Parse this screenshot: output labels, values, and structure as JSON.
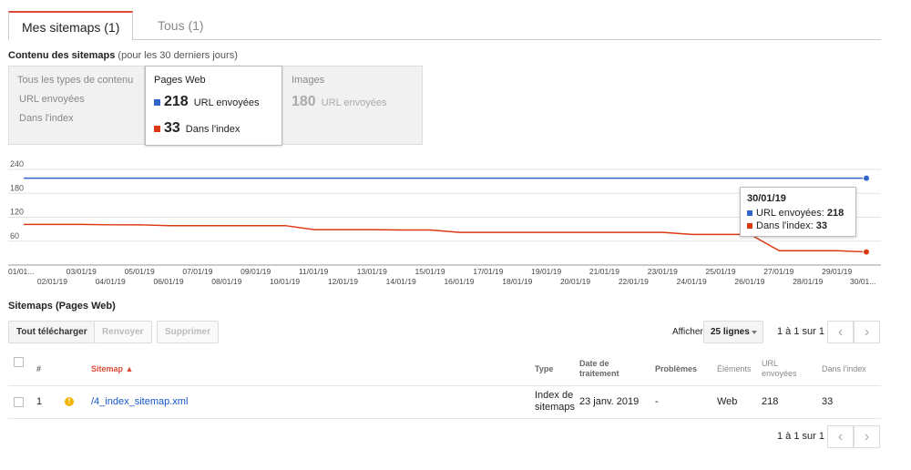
{
  "tabs": [
    {
      "label": "Mes sitemaps (1)",
      "active": true
    },
    {
      "label": "Tous (1)",
      "active": false
    }
  ],
  "content_section": {
    "title": "Contenu des sitemaps",
    "subtitle": "(pour les 30 derniers jours)"
  },
  "boxes": {
    "all": {
      "title": "Tous les types de contenu",
      "line1": "URL envoyées",
      "line2": "Dans l'index"
    },
    "web": {
      "title": "Pages Web",
      "submitted_value": "218",
      "submitted_label": "URL envoyées",
      "indexed_value": "33",
      "indexed_label": "Dans l'index"
    },
    "images": {
      "title": "Images",
      "submitted_value": "180",
      "submitted_label": "URL envoyées"
    }
  },
  "colors": {
    "submitted": "#3366cc",
    "indexed": "#dc3912",
    "accent_tab": "#dd4b39",
    "link": "#1155cc",
    "warning": "#f4b400"
  },
  "chart_data": {
    "type": "line",
    "y_ticks": [
      "240",
      "180",
      "120",
      "60"
    ],
    "ylim": [
      0,
      240
    ],
    "x_labels_top": [
      "01/01...",
      "03/01/19",
      "05/01/19",
      "07/01/19",
      "09/01/19",
      "11/01/19",
      "13/01/19",
      "15/01/19",
      "17/01/19",
      "19/01/19",
      "21/01/19",
      "23/01/19",
      "25/01/19",
      "27/01/19",
      "29/01/19"
    ],
    "x_labels_bottom": [
      "02/01/19",
      "04/01/19",
      "06/01/19",
      "08/01/19",
      "10/01/19",
      "12/01/19",
      "14/01/19",
      "16/01/19",
      "18/01/19",
      "20/01/19",
      "22/01/19",
      "24/01/19",
      "26/01/19",
      "28/01/19",
      "30/01..."
    ],
    "n_points": 30,
    "grid": true,
    "series": [
      {
        "name": "URL envoyées",
        "color": "#3366cc",
        "values": [
          218,
          218,
          218,
          218,
          218,
          218,
          218,
          218,
          218,
          218,
          218,
          218,
          218,
          218,
          218,
          218,
          218,
          218,
          218,
          218,
          218,
          218,
          218,
          218,
          218,
          218,
          218,
          218,
          218,
          218
        ]
      },
      {
        "name": "Dans l'index",
        "color": "#dc3912",
        "values": [
          102,
          102,
          102,
          101,
          101,
          99,
          99,
          99,
          99,
          99,
          89,
          89,
          89,
          88,
          88,
          82,
          82,
          82,
          82,
          82,
          82,
          82,
          82,
          77,
          77,
          77,
          36,
          36,
          36,
          33
        ]
      }
    ]
  },
  "tooltip": {
    "date": "30/01/19",
    "submitted_label": "URL envoyées:",
    "submitted_value": "218",
    "indexed_label": "Dans l'index:",
    "indexed_value": "33"
  },
  "sitemaps_section": {
    "title": "Sitemaps (Pages Web)"
  },
  "toolbar": {
    "download": "Tout télécharger",
    "resubmit": "Renvoyer",
    "delete": "Supprimer",
    "show_label": "Afficher",
    "rows_value": "25 lignes",
    "pager_text": "1 à 1 sur 1"
  },
  "table": {
    "headers": {
      "num": "#",
      "sitemap": "Sitemap ▲",
      "type": "Type",
      "date_l1": "Date de",
      "date_l2": "traitement",
      "problems": "Problèmes",
      "elements": "Éléments",
      "urls_l1": "URL",
      "urls_l2": "envoyées",
      "indexed": "Dans l'index"
    },
    "rows": [
      {
        "num": "1",
        "sitemap": "/4_index_sitemap.xml",
        "type_l1": "Index de",
        "type_l2": "sitemaps",
        "date": "23 janv. 2019",
        "problems": "-",
        "elements": "Web",
        "urls": "218",
        "indexed": "33",
        "warning": "!"
      }
    ]
  },
  "footer_pager": {
    "text": "1 à 1 sur 1"
  }
}
